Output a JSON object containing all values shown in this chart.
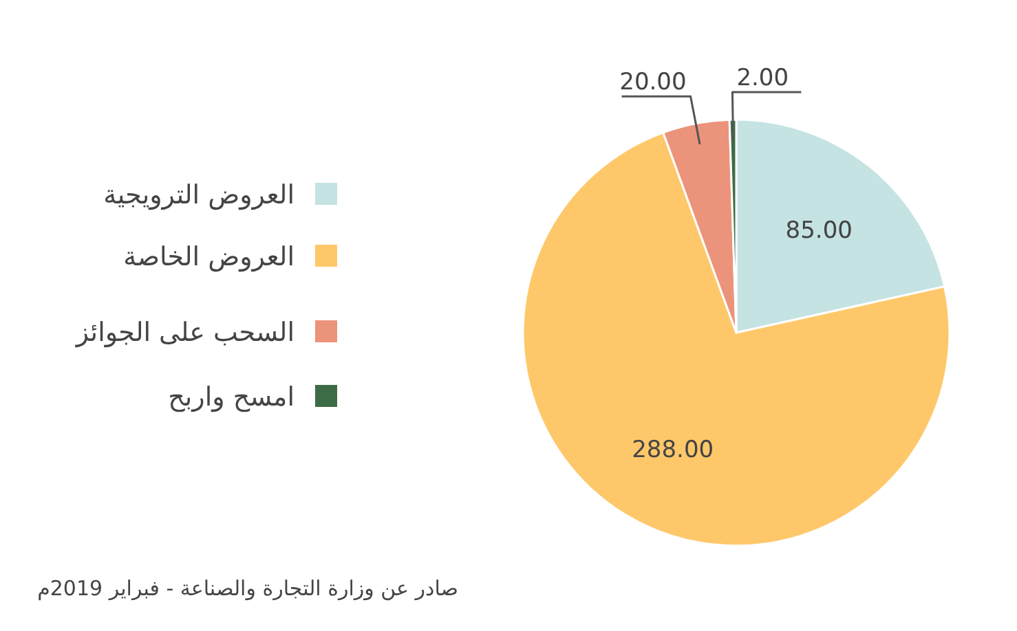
{
  "chart_data": {
    "type": "pie",
    "categories": [
      "العروض الترويجية",
      "العروض الخاصة",
      "السحب على الجوائز",
      "امسح واربح"
    ],
    "values": [
      85,
      288,
      20,
      2
    ],
    "value_labels": [
      "85.00",
      "288.00",
      "20.00",
      "2.00"
    ],
    "colors": [
      "#c5e3e3",
      "#fec86a",
      "#ec937b",
      "#3d6b45"
    ],
    "legend": "left",
    "annotations": [
      "صادر عن وزارة التجارة والصناعة - فبراير 2019م"
    ]
  }
}
